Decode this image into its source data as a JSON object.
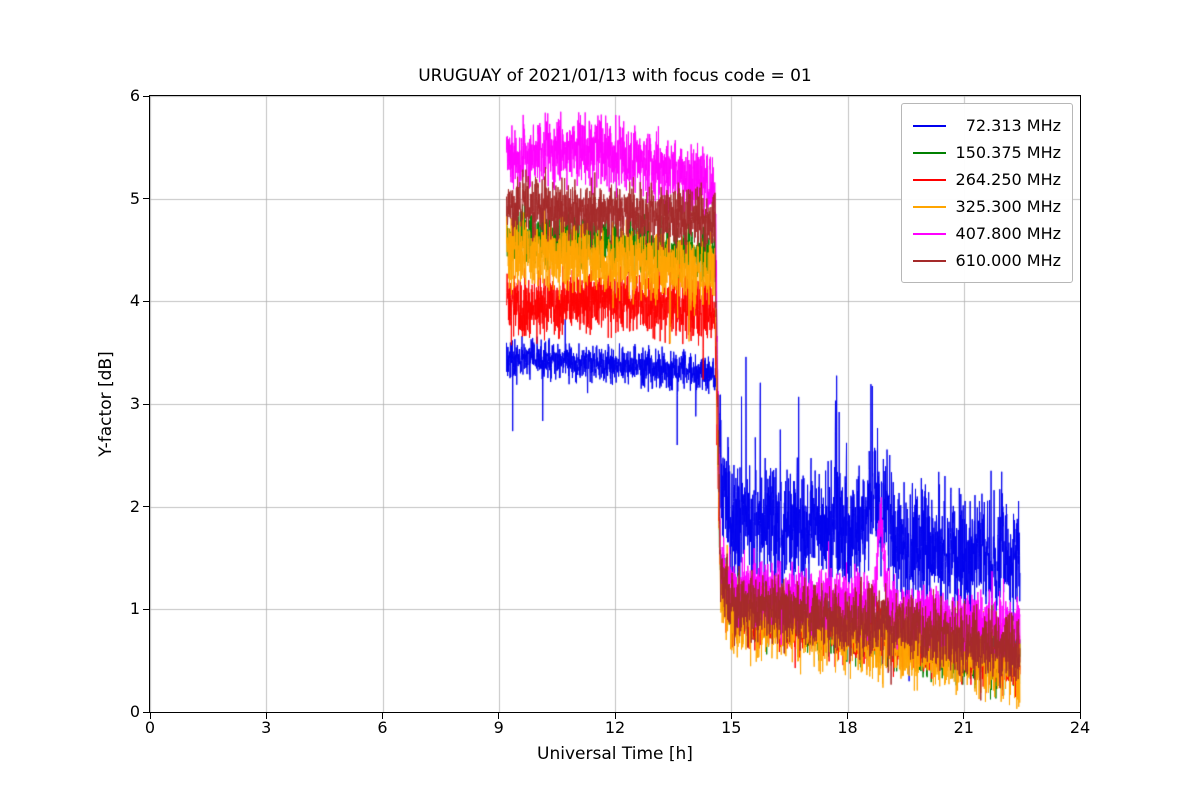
{
  "chart_data": {
    "type": "line",
    "title": "URUGUAY of 2021/01/13 with focus code = 01",
    "xlabel": "Universal Time [h]",
    "ylabel": "Y-factor [dB]",
    "xlim": [
      0,
      24
    ],
    "ylim": [
      0,
      6
    ],
    "xticks": [
      0,
      3,
      6,
      9,
      12,
      15,
      18,
      21,
      24
    ],
    "yticks": [
      0,
      1,
      2,
      3,
      4,
      5,
      6
    ],
    "grid": true,
    "grid_color": "#b0b0b0",
    "legend_position": "upper right",
    "t_range": [
      9.2,
      22.45
    ],
    "sample_step_h": 0.005,
    "series": [
      {
        "name": "72.313 MHz",
        "legend_label": "  72.313 MHz",
        "color": "#0000ee",
        "baseline_points": [
          [
            9.2,
            3.45
          ],
          [
            11.5,
            3.4
          ],
          [
            14.62,
            3.3
          ],
          [
            14.78,
            2.0
          ],
          [
            15.0,
            1.9
          ],
          [
            18.0,
            1.75
          ],
          [
            21.0,
            1.55
          ],
          [
            22.45,
            1.45
          ]
        ],
        "noise": {
          "pre": 0.18,
          "post": 0.55,
          "split_t": 14.68
        },
        "spikes": {
          "pre": {
            "rate": 0.01,
            "mag": 0.7,
            "up_prob": 0.15
          },
          "post": {
            "rate": 0.03,
            "mag": 1.0,
            "up_prob": 0.75
          }
        },
        "events": [
          {
            "t": 18.8,
            "height": 0.3,
            "width": 0.35
          }
        ]
      },
      {
        "name": "150.375 MHz",
        "legend_label": "150.375 MHz",
        "color": "#008000",
        "baseline_points": [
          [
            9.2,
            4.65
          ],
          [
            14.58,
            4.45
          ],
          [
            14.72,
            1.3
          ],
          [
            15.0,
            1.0
          ],
          [
            19.0,
            0.75
          ],
          [
            22.45,
            0.5
          ]
        ],
        "noise": {
          "pre": 0.25,
          "post": 0.3,
          "split_t": 14.65
        },
        "spikes": {
          "pre": {
            "rate": 0.004,
            "mag": 0.3,
            "up_prob": 0.4
          },
          "post": {
            "rate": 0.006,
            "mag": 0.35,
            "up_prob": 0.4
          }
        },
        "events": []
      },
      {
        "name": "264.250 MHz",
        "legend_label": "264.250 MHz",
        "color": "#ff0000",
        "baseline_points": [
          [
            9.2,
            3.95
          ],
          [
            12.0,
            4.02
          ],
          [
            14.58,
            3.9
          ],
          [
            14.72,
            1.3
          ],
          [
            15.0,
            1.0
          ],
          [
            19.0,
            0.75
          ],
          [
            22.45,
            0.52
          ]
        ],
        "noise": {
          "pre": 0.3,
          "post": 0.3,
          "split_t": 14.65
        },
        "spikes": {
          "pre": {
            "rate": 0.006,
            "mag": 0.4,
            "up_prob": 0.35
          },
          "post": {
            "rate": 0.006,
            "mag": 0.35,
            "up_prob": 0.4
          }
        },
        "events": []
      },
      {
        "name": "325.300 MHz",
        "legend_label": "325.300 MHz",
        "color": "#ffa500",
        "baseline_points": [
          [
            9.2,
            4.5
          ],
          [
            11.0,
            4.45
          ],
          [
            14.58,
            4.25
          ],
          [
            14.72,
            1.25
          ],
          [
            15.0,
            0.95
          ],
          [
            19.0,
            0.7
          ],
          [
            22.45,
            0.45
          ]
        ],
        "noise": {
          "pre": 0.35,
          "post": 0.35,
          "split_t": 14.65
        },
        "spikes": {
          "pre": {
            "rate": 0.008,
            "mag": 0.45,
            "up_prob": 0.3
          },
          "post": {
            "rate": 0.008,
            "mag": 0.4,
            "up_prob": 0.4
          }
        },
        "events": []
      },
      {
        "name": "407.800 MHz",
        "legend_label": "407.800 MHz",
        "color": "#ff00ff",
        "baseline_points": [
          [
            9.2,
            5.38
          ],
          [
            11.2,
            5.5
          ],
          [
            14.58,
            5.15
          ],
          [
            14.72,
            1.45
          ],
          [
            15.0,
            1.2
          ],
          [
            18.5,
            1.05
          ],
          [
            20.0,
            0.95
          ],
          [
            22.45,
            0.8
          ]
        ],
        "noise": {
          "pre": 0.32,
          "post": 0.28,
          "split_t": 14.65
        },
        "spikes": {
          "pre": {
            "rate": 0.006,
            "mag": 0.4,
            "up_prob": 0.4
          },
          "post": {
            "rate": 0.008,
            "mag": 0.45,
            "up_prob": 0.5
          }
        },
        "events": [
          {
            "t": 18.85,
            "height": 0.8,
            "width": 0.12
          }
        ]
      },
      {
        "name": "610.000 MHz",
        "legend_label": "610.000 MHz",
        "color": "#a52a2a",
        "baseline_points": [
          [
            9.2,
            4.95
          ],
          [
            14.58,
            4.78
          ],
          [
            14.72,
            1.35
          ],
          [
            15.0,
            1.05
          ],
          [
            19.0,
            0.85
          ],
          [
            22.45,
            0.58
          ]
        ],
        "noise": {
          "pre": 0.28,
          "post": 0.32,
          "split_t": 14.65
        },
        "spikes": {
          "pre": {
            "rate": 0.005,
            "mag": 0.35,
            "up_prob": 0.4
          },
          "post": {
            "rate": 0.008,
            "mag": 0.4,
            "up_prob": 0.4
          }
        },
        "events": []
      }
    ]
  }
}
